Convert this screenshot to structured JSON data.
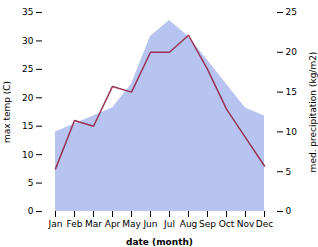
{
  "chart_data": {
    "type": "line",
    "categories": [
      "Jan",
      "Feb",
      "Mar",
      "Apr",
      "May",
      "Jun",
      "Jul",
      "Aug",
      "Sep",
      "Oct",
      "Nov",
      "Dec"
    ],
    "series": [
      {
        "type": "area",
        "axis": "y2",
        "color": "#b8c4f0",
        "values": [
          10,
          11,
          12,
          13,
          16,
          22,
          24,
          22,
          19,
          16,
          13,
          12
        ]
      },
      {
        "type": "line",
        "color": "#993355",
        "values": [
          7.5,
          16,
          15,
          22,
          21,
          28,
          28,
          31,
          25,
          18,
          13,
          8
        ]
      }
    ],
    "xlabel": "date (month)",
    "ylabel": "max temp (C)",
    "y2label": "med. precipitation (kg/m2)",
    "ylim": [
      0,
      35
    ],
    "yticks": [
      0,
      5,
      10,
      15,
      20,
      25,
      30,
      35
    ],
    "y2lim": [
      0,
      25
    ],
    "y2ticks": [
      0,
      5,
      10,
      15,
      20,
      25
    ],
    "grid": false
  }
}
